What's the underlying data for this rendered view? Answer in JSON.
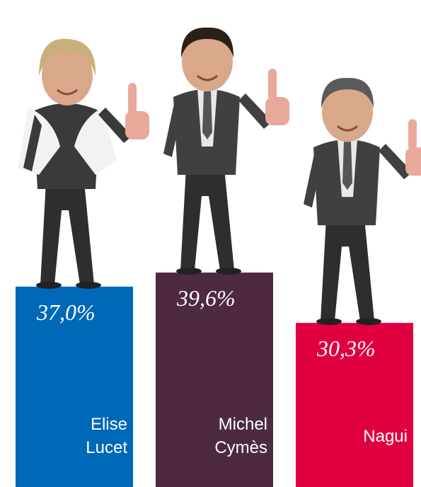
{
  "chart_data": {
    "type": "bar",
    "categories": [
      "Elise Lucet",
      "Michel Cymès",
      "Nagui"
    ],
    "values": [
      37.0,
      39.6,
      30.3
    ],
    "value_labels": [
      "37,0%",
      "39,6%",
      "30,3%"
    ],
    "colors": [
      "#0068b8",
      "#4e2a40",
      "#e0003f"
    ]
  }
}
